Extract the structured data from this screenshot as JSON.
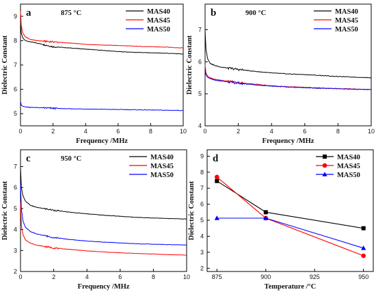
{
  "chart_data": [
    {
      "panel": "a",
      "type": "line",
      "annotation": "875 °C",
      "xlabel": "Frequency /MHz",
      "ylabel": "Dielectric Constant",
      "xlim": [
        0,
        10
      ],
      "ylim": [
        4.5,
        9.5
      ],
      "xticks": [
        0,
        2,
        4,
        6,
        8,
        10
      ],
      "yticks": [
        5,
        6,
        7,
        8,
        9
      ],
      "legend_position": "top-right",
      "grid": false,
      "series": [
        {
          "name": "MAS40",
          "color": "#000000",
          "x": [
            0,
            0.05,
            0.15,
            0.3,
            0.6,
            1,
            2,
            3,
            4,
            5,
            6,
            7,
            8,
            9,
            10
          ],
          "y": [
            8.9,
            8.3,
            8.1,
            8.0,
            7.95,
            7.9,
            7.75,
            7.7,
            7.65,
            7.6,
            7.55,
            7.52,
            7.5,
            7.48,
            7.45
          ]
        },
        {
          "name": "MAS45",
          "color": "#ff0000",
          "x": [
            0,
            0.05,
            0.15,
            0.3,
            0.6,
            1,
            2,
            3,
            4,
            5,
            6,
            7,
            8,
            9,
            10
          ],
          "y": [
            9.2,
            8.6,
            8.3,
            8.15,
            8.05,
            8.0,
            7.95,
            7.9,
            7.85,
            7.82,
            7.8,
            7.77,
            7.75,
            7.73,
            7.7
          ]
        },
        {
          "name": "MAS50",
          "color": "#0000ff",
          "x": [
            0,
            0.05,
            0.15,
            0.3,
            0.6,
            1,
            2,
            3,
            4,
            5,
            6,
            7,
            8,
            9,
            10
          ],
          "y": [
            5.5,
            5.35,
            5.3,
            5.28,
            5.26,
            5.25,
            5.22,
            5.2,
            5.19,
            5.18,
            5.17,
            5.16,
            5.15,
            5.14,
            5.13
          ]
        }
      ]
    },
    {
      "panel": "b",
      "type": "line",
      "annotation": "900 °C",
      "xlabel": "Frequency /MHz",
      "ylabel": "Dielectric Constant",
      "xlim": [
        0,
        10
      ],
      "ylim": [
        4,
        7.8
      ],
      "xticks": [
        0,
        2,
        4,
        6,
        8,
        10
      ],
      "yticks": [
        4,
        5,
        6,
        7
      ],
      "legend_position": "top-right",
      "grid": false,
      "series": [
        {
          "name": "MAS40",
          "color": "#000000",
          "x": [
            0,
            0.05,
            0.15,
            0.3,
            0.6,
            1,
            2,
            3,
            4,
            5,
            6,
            7,
            8,
            9,
            10
          ],
          "y": [
            7.0,
            6.4,
            6.1,
            5.95,
            5.88,
            5.83,
            5.76,
            5.7,
            5.65,
            5.62,
            5.6,
            5.57,
            5.54,
            5.52,
            5.5
          ]
        },
        {
          "name": "MAS45",
          "color": "#ff0000",
          "x": [
            0,
            0.05,
            0.15,
            0.3,
            0.6,
            1,
            2,
            3,
            4,
            5,
            6,
            7,
            8,
            9,
            10
          ],
          "y": [
            5.9,
            5.65,
            5.55,
            5.5,
            5.45,
            5.42,
            5.35,
            5.3,
            5.25,
            5.22,
            5.2,
            5.18,
            5.16,
            5.15,
            5.13
          ]
        },
        {
          "name": "MAS50",
          "color": "#0000ff",
          "x": [
            0,
            0.05,
            0.15,
            0.3,
            0.6,
            1,
            2,
            3,
            4,
            5,
            6,
            7,
            8,
            9,
            10
          ],
          "y": [
            5.8,
            5.6,
            5.52,
            5.47,
            5.42,
            5.4,
            5.33,
            5.28,
            5.24,
            5.21,
            5.19,
            5.17,
            5.16,
            5.14,
            5.13
          ]
        }
      ]
    },
    {
      "panel": "c",
      "type": "line",
      "annotation": "950 °C",
      "xlabel": "Frequency /MHz",
      "ylabel": "Dielectric Constant",
      "xlim": [
        0,
        10
      ],
      "ylim": [
        2,
        7.8
      ],
      "xticks": [
        0,
        2,
        4,
        6,
        8,
        10
      ],
      "yticks": [
        2,
        3,
        4,
        5,
        6,
        7
      ],
      "legend_position": "top-right",
      "grid": false,
      "series": [
        {
          "name": "MAS40",
          "color": "#000000",
          "x": [
            0,
            0.05,
            0.15,
            0.3,
            0.6,
            1,
            2,
            3,
            4,
            5,
            6,
            7,
            8,
            9,
            10
          ],
          "y": [
            7.0,
            6.0,
            5.6,
            5.35,
            5.15,
            5.05,
            4.92,
            4.82,
            4.75,
            4.68,
            4.63,
            4.58,
            4.55,
            4.52,
            4.5
          ]
        },
        {
          "name": "MAS45",
          "color": "#ff0000",
          "x": [
            0,
            0.05,
            0.15,
            0.3,
            0.6,
            1,
            2,
            3,
            4,
            5,
            6,
            7,
            8,
            9,
            10
          ],
          "y": [
            5.3,
            4.2,
            3.75,
            3.5,
            3.35,
            3.25,
            3.12,
            3.05,
            2.98,
            2.93,
            2.89,
            2.86,
            2.83,
            2.8,
            2.78
          ]
        },
        {
          "name": "MAS50",
          "color": "#0000ff",
          "x": [
            0,
            0.05,
            0.15,
            0.3,
            0.6,
            1,
            2,
            3,
            4,
            5,
            6,
            7,
            8,
            9,
            10
          ],
          "y": [
            6.2,
            5.0,
            4.4,
            4.1,
            3.9,
            3.78,
            3.62,
            3.52,
            3.45,
            3.4,
            3.36,
            3.32,
            3.3,
            3.28,
            3.26
          ]
        }
      ]
    },
    {
      "panel": "d",
      "type": "line",
      "xlabel": "Temperature /°C",
      "ylabel": "Dielectric Constant",
      "xlim": [
        870,
        955
      ],
      "ylim": [
        1.8,
        9.4
      ],
      "xticks": [
        875,
        900,
        925,
        950
      ],
      "yticks": [
        2,
        3,
        4,
        5,
        6,
        7,
        8,
        9
      ],
      "legend_position": "top-right",
      "grid": false,
      "series": [
        {
          "name": "MAS40",
          "color": "#000000",
          "marker": "square",
          "x": [
            875,
            900,
            950
          ],
          "y": [
            7.45,
            5.5,
            4.5
          ]
        },
        {
          "name": "MAS45",
          "color": "#ff0000",
          "marker": "circle",
          "x": [
            875,
            900,
            950
          ],
          "y": [
            7.7,
            5.13,
            2.78
          ]
        },
        {
          "name": "MAS50",
          "color": "#0000ff",
          "marker": "triangle",
          "x": [
            875,
            900,
            950
          ],
          "y": [
            5.13,
            5.13,
            3.26
          ]
        }
      ]
    }
  ]
}
